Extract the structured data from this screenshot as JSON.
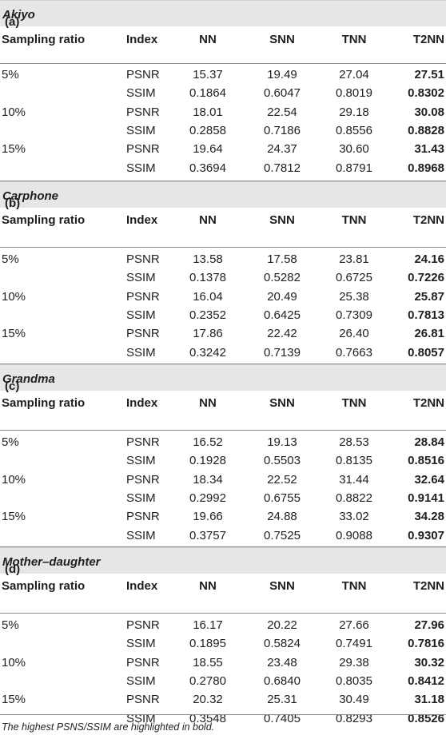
{
  "headers": {
    "ratio": "Sampling ratio",
    "index": "Index",
    "nn": "NN",
    "snn": "SNN",
    "tnn": "TNN",
    "t2nn": "T2NN"
  },
  "sections": [
    {
      "prefix": "(a) ",
      "name": "Akiyo",
      "rows": [
        {
          "ratio": "5%",
          "index": "PSNR",
          "nn": "15.37",
          "snn": "19.49",
          "tnn": "27.04",
          "t2nn": "27.51"
        },
        {
          "ratio": "",
          "index": "SSIM",
          "nn": "0.1864",
          "snn": "0.6047",
          "tnn": "0.8019",
          "t2nn": "0.8302"
        },
        {
          "ratio": "10%",
          "index": "PSNR",
          "nn": "18.01",
          "snn": "22.54",
          "tnn": "29.18",
          "t2nn": "30.08"
        },
        {
          "ratio": "",
          "index": "SSIM",
          "nn": "0.2858",
          "snn": "0.7186",
          "tnn": "0.8556",
          "t2nn": "0.8828"
        },
        {
          "ratio": "15%",
          "index": "PSNR",
          "nn": "19.64",
          "snn": "24.37",
          "tnn": "30.60",
          "t2nn": "31.43"
        },
        {
          "ratio": "",
          "index": "SSIM",
          "nn": "0.3694",
          "snn": "0.7812",
          "tnn": "0.8791",
          "t2nn": "0.8968"
        }
      ]
    },
    {
      "prefix": "(b) ",
      "name": "Carphone",
      "rows": [
        {
          "ratio": "5%",
          "index": "PSNR",
          "nn": "13.58",
          "snn": "17.58",
          "tnn": "23.81",
          "t2nn": "24.16"
        },
        {
          "ratio": "",
          "index": "SSIM",
          "nn": "0.1378",
          "snn": "0.5282",
          "tnn": "0.6725",
          "t2nn": "0.7226"
        },
        {
          "ratio": "10%",
          "index": "PSNR",
          "nn": "16.04",
          "snn": "20.49",
          "tnn": "25.38",
          "t2nn": "25.87"
        },
        {
          "ratio": "",
          "index": "SSIM",
          "nn": "0.2352",
          "snn": "0.6425",
          "tnn": "0.7309",
          "t2nn": "0.7813"
        },
        {
          "ratio": "15%",
          "index": "PSNR",
          "nn": "17.86",
          "snn": "22.42",
          "tnn": "26.40",
          "t2nn": "26.81"
        },
        {
          "ratio": "",
          "index": "SSIM",
          "nn": "0.3242",
          "snn": "0.7139",
          "tnn": "0.7663",
          "t2nn": "0.8057"
        }
      ]
    },
    {
      "prefix": "(c) ",
      "name": "Grandma",
      "rows": [
        {
          "ratio": "5%",
          "index": "PSNR",
          "nn": "16.52",
          "snn": "19.13",
          "tnn": "28.53",
          "t2nn": "28.84"
        },
        {
          "ratio": "",
          "index": "SSIM",
          "nn": "0.1928",
          "snn": "0.5503",
          "tnn": "0.8135",
          "t2nn": "0.8516"
        },
        {
          "ratio": "10%",
          "index": "PSNR",
          "nn": "18.34",
          "snn": "22.52",
          "tnn": "31.44",
          "t2nn": "32.64"
        },
        {
          "ratio": "",
          "index": "SSIM",
          "nn": "0.2992",
          "snn": "0.6755",
          "tnn": "0.8822",
          "t2nn": "0.9141"
        },
        {
          "ratio": "15%",
          "index": "PSNR",
          "nn": "19.66",
          "snn": "24.88",
          "tnn": "33.02",
          "t2nn": "34.28"
        },
        {
          "ratio": "",
          "index": "SSIM",
          "nn": "0.3757",
          "snn": "0.7525",
          "tnn": "0.9088",
          "t2nn": "0.9307"
        }
      ]
    },
    {
      "prefix": "(d) ",
      "name": "Mother–daughter",
      "rows": [
        {
          "ratio": "5%",
          "index": "PSNR",
          "nn": "16.17",
          "snn": "20.22",
          "tnn": "27.66",
          "t2nn": "27.96"
        },
        {
          "ratio": "",
          "index": "SSIM",
          "nn": "0.1895",
          "snn": "0.5824",
          "tnn": "0.7491",
          "t2nn": "0.7816"
        },
        {
          "ratio": "10%",
          "index": "PSNR",
          "nn": "18.55",
          "snn": "23.48",
          "tnn": "29.38",
          "t2nn": "30.32"
        },
        {
          "ratio": "",
          "index": "SSIM",
          "nn": "0.2780",
          "snn": "0.6840",
          "tnn": "0.8035",
          "t2nn": "0.8412"
        },
        {
          "ratio": "15%",
          "index": "PSNR",
          "nn": "20.32",
          "snn": "25.31",
          "tnn": "30.49",
          "t2nn": "31.18"
        },
        {
          "ratio": "",
          "index": "SSIM",
          "nn": "0.3548",
          "snn": "0.7405",
          "tnn": "0.8293",
          "t2nn": "0.8526"
        }
      ]
    }
  ],
  "footnote": "The highest PSNS/SSIM are highlighted in bold."
}
